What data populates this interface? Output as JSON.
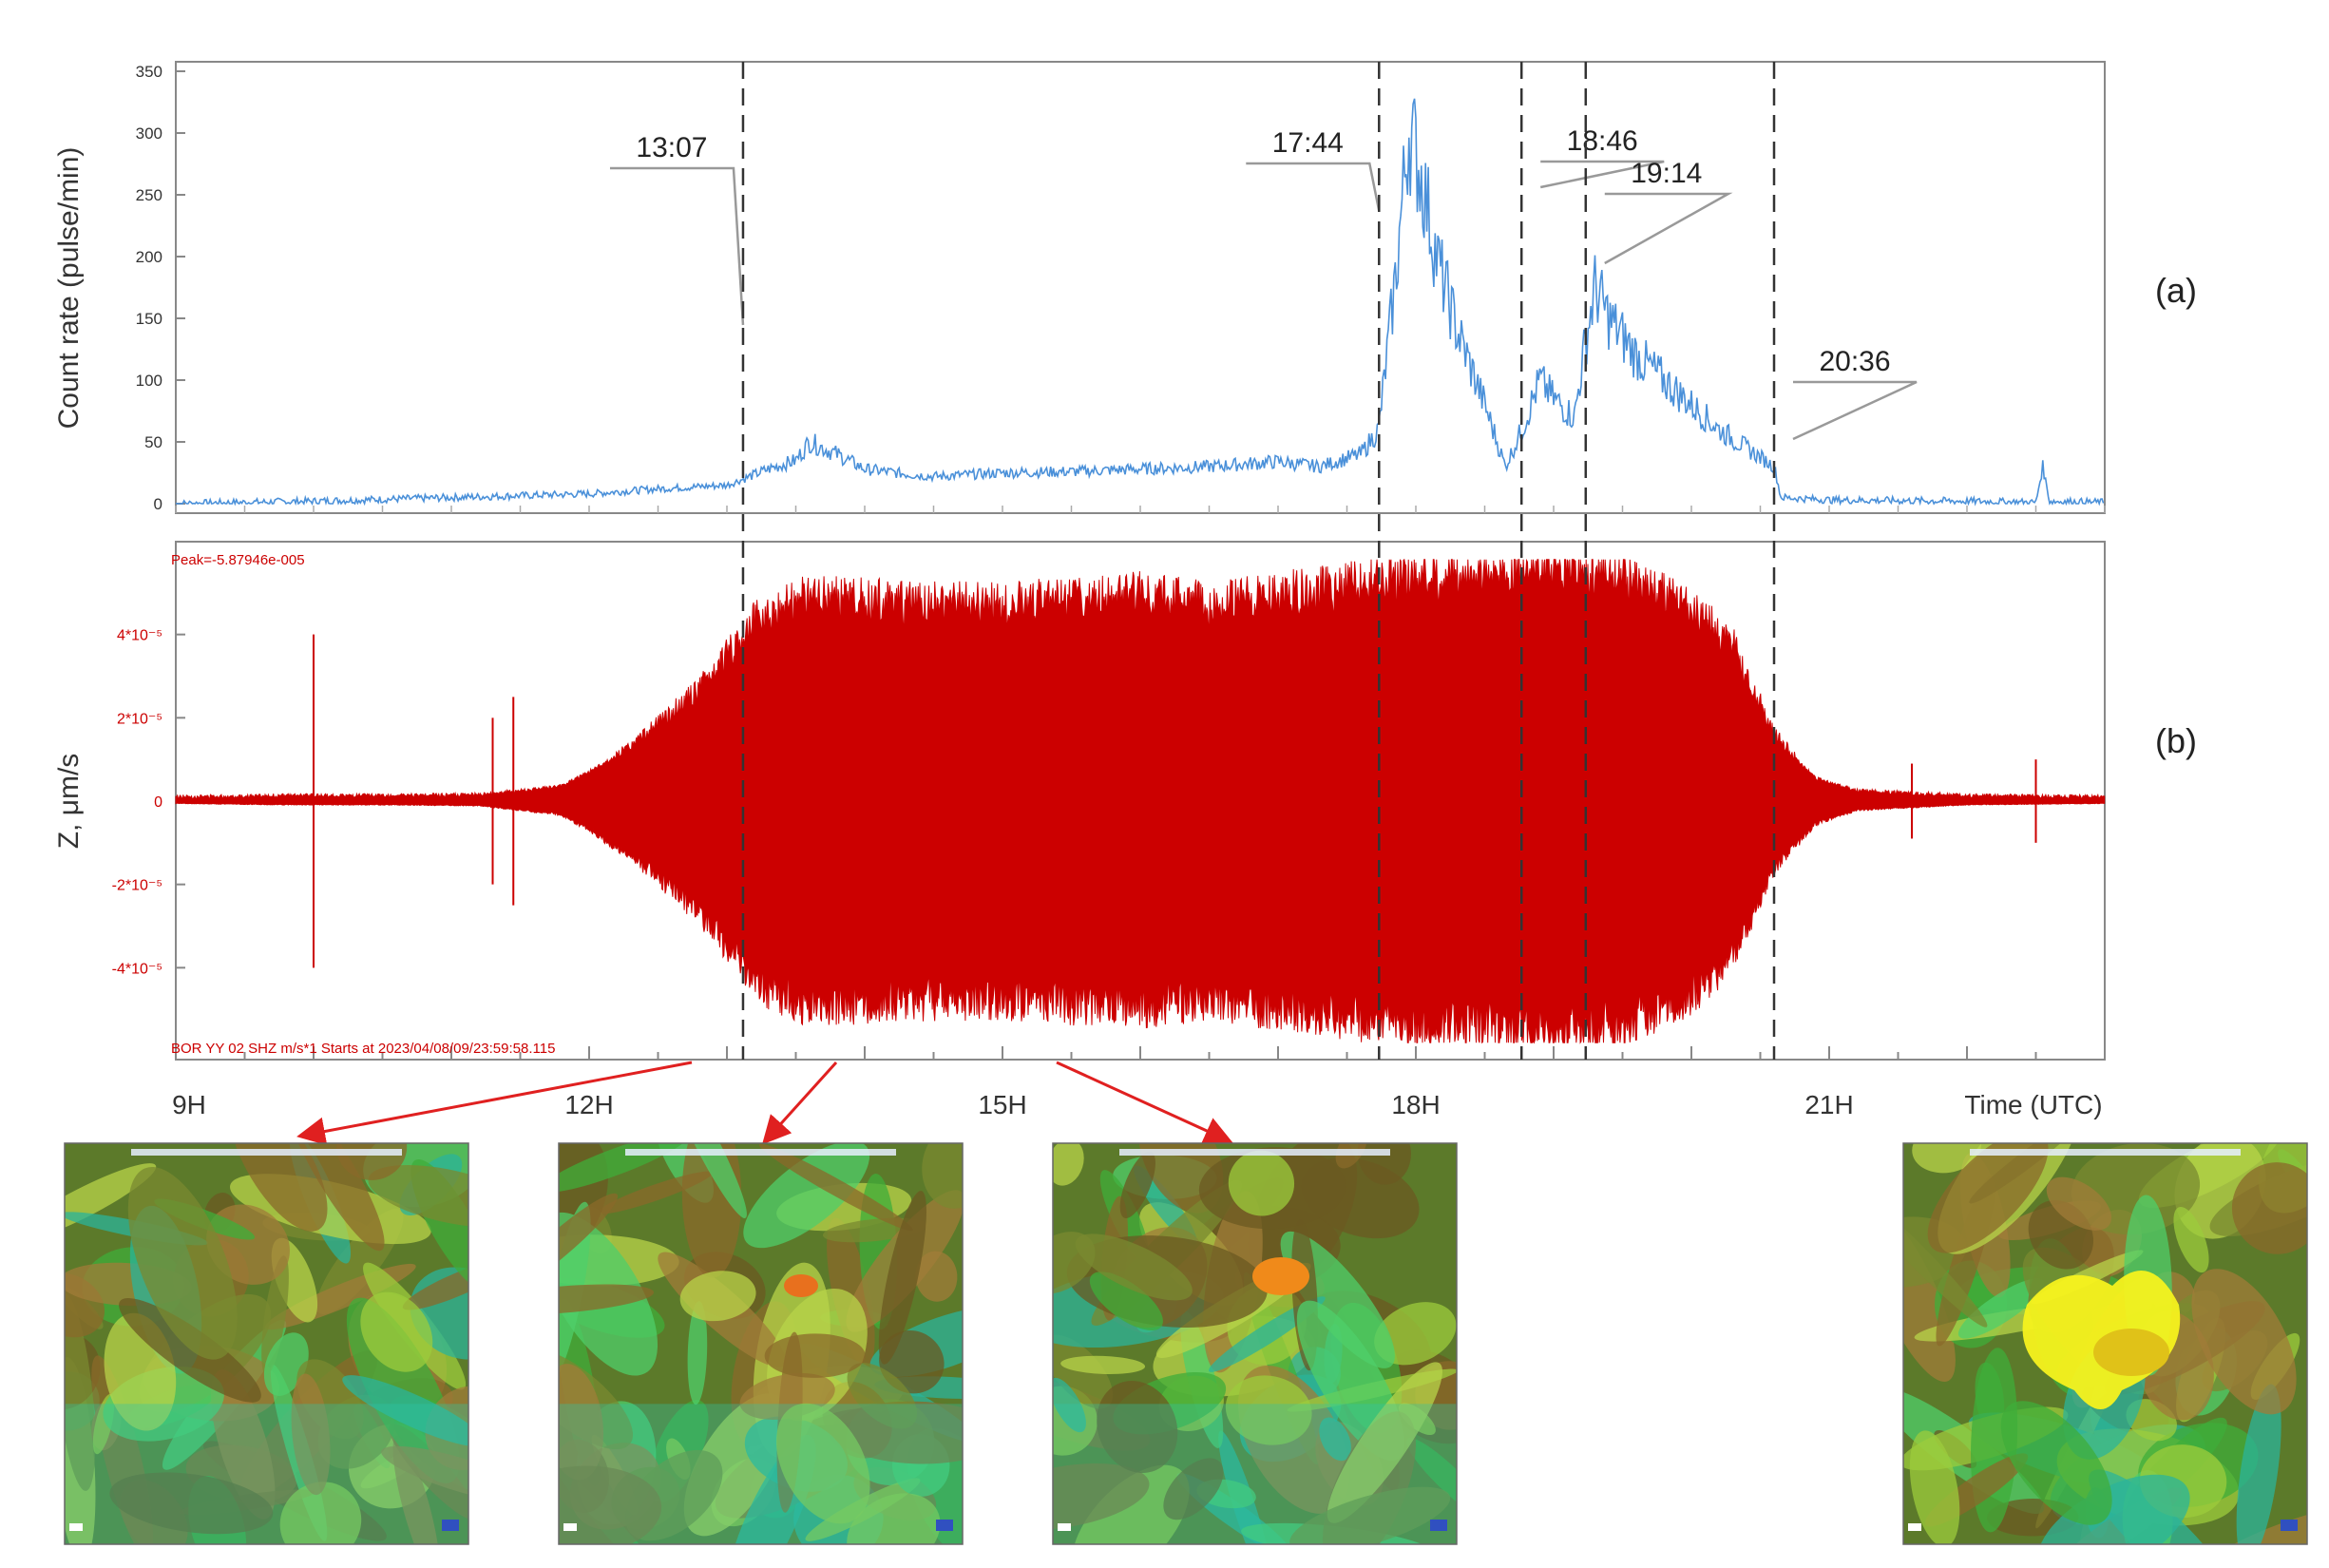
{
  "chart_data": [
    {
      "type": "line",
      "panel_label": "(a)",
      "ylabel": "Count rate (pulse/min)",
      "xlabel": "",
      "ylim": [
        0,
        350
      ],
      "yticks": [
        "0",
        "50",
        "100",
        "150",
        "200",
        "250",
        "300",
        "350"
      ],
      "xlim_hours": [
        9,
        23
      ],
      "line_color": "#4a90d9",
      "series": [
        {
          "x_hours": [
            9.0,
            10.0,
            11.0,
            12.0,
            12.5,
            13.0,
            13.12,
            13.3,
            13.5,
            13.6,
            13.8,
            14.0,
            14.3,
            14.5,
            15.0,
            15.5,
            16.0,
            16.5,
            17.0,
            17.3,
            17.6,
            17.73,
            17.85,
            17.95,
            18.05,
            18.15,
            18.3,
            18.5,
            18.65,
            18.77,
            18.9,
            19.0,
            19.15,
            19.23,
            19.3,
            19.4,
            19.6,
            19.8,
            20.0,
            20.2,
            20.4,
            20.6,
            20.65,
            21.0,
            22.0,
            22.5,
            22.55,
            22.6,
            23.0
          ],
          "y": [
            0,
            2,
            5,
            8,
            12,
            15,
            20,
            28,
            35,
            50,
            40,
            28,
            24,
            22,
            25,
            26,
            28,
            30,
            34,
            30,
            40,
            60,
            180,
            305,
            260,
            200,
            140,
            80,
            30,
            60,
            100,
            85,
            70,
            130,
            175,
            150,
            120,
            100,
            80,
            60,
            45,
            30,
            5,
            3,
            2,
            1,
            30,
            2,
            1
          ]
        }
      ],
      "annotations": [
        {
          "label": "13:07",
          "x_hours": 13.117
        },
        {
          "label": "17:44",
          "x_hours": 17.733
        },
        {
          "label": "18:46",
          "x_hours": 18.767
        },
        {
          "label": "19:14",
          "x_hours": 19.233
        },
        {
          "label": "20:36",
          "x_hours": 20.6
        }
      ]
    },
    {
      "type": "line",
      "panel_label": "(b)",
      "ylabel": "Z, μm/s",
      "xlabel": "Time (UTC)",
      "ylim_units": [
        -6,
        6
      ],
      "yticks": [
        "-4*10⁻⁵",
        "-2*10⁻⁵",
        "0",
        "2*10⁻⁵",
        "4*10⁻⁵"
      ],
      "ytick_values": [
        -4,
        -2,
        0,
        2,
        4
      ],
      "xticks": [
        "9H",
        "12H",
        "15H",
        "18H",
        "21H"
      ],
      "xtick_values_hours": [
        9,
        12,
        15,
        18,
        21
      ],
      "top_text": "Peak=-5.87946e-005",
      "bottom_text": "BOR YY 02 SHZ  m/s*1  Starts at 2023/04/08/09/23:59:58.115",
      "line_color": "#cc0000",
      "envelope": {
        "x_hours": [
          9.0,
          9.8,
          10.5,
          11.2,
          11.8,
          12.3,
          12.8,
          13.2,
          13.5,
          14.0,
          14.5,
          15.0,
          15.5,
          16.0,
          16.5,
          17.0,
          17.5,
          18.0,
          18.5,
          19.0,
          19.5,
          20.0,
          20.3,
          20.6,
          20.9,
          21.2,
          22.0,
          23.0
        ],
        "amplitude": [
          0.05,
          0.08,
          0.08,
          0.1,
          0.3,
          1.2,
          2.5,
          4.0,
          4.5,
          4.5,
          4.4,
          4.4,
          4.5,
          4.6,
          4.4,
          4.6,
          4.8,
          5.0,
          5.0,
          5.2,
          5.0,
          4.3,
          3.5,
          1.5,
          0.5,
          0.2,
          0.08,
          0.05
        ]
      },
      "spikes": [
        {
          "x_hours": 10.0,
          "amplitude": 4.0
        },
        {
          "x_hours": 11.3,
          "amplitude": 2.0
        },
        {
          "x_hours": 11.45,
          "amplitude": 2.5
        },
        {
          "x_hours": 21.6,
          "amplitude": 0.9
        },
        {
          "x_hours": 22.5,
          "amplitude": 1.0
        }
      ]
    }
  ],
  "thumbnails": [
    {
      "scene": "airmass-rgb",
      "seed": 1,
      "hotspot": "none"
    },
    {
      "scene": "airmass-rgb",
      "seed": 2,
      "hotspot": "small-orange"
    },
    {
      "scene": "airmass-rgb",
      "seed": 3,
      "hotspot": "orange"
    },
    {
      "scene": "airmass-rgb",
      "seed": 4,
      "hotspot": "large-yellow"
    }
  ]
}
